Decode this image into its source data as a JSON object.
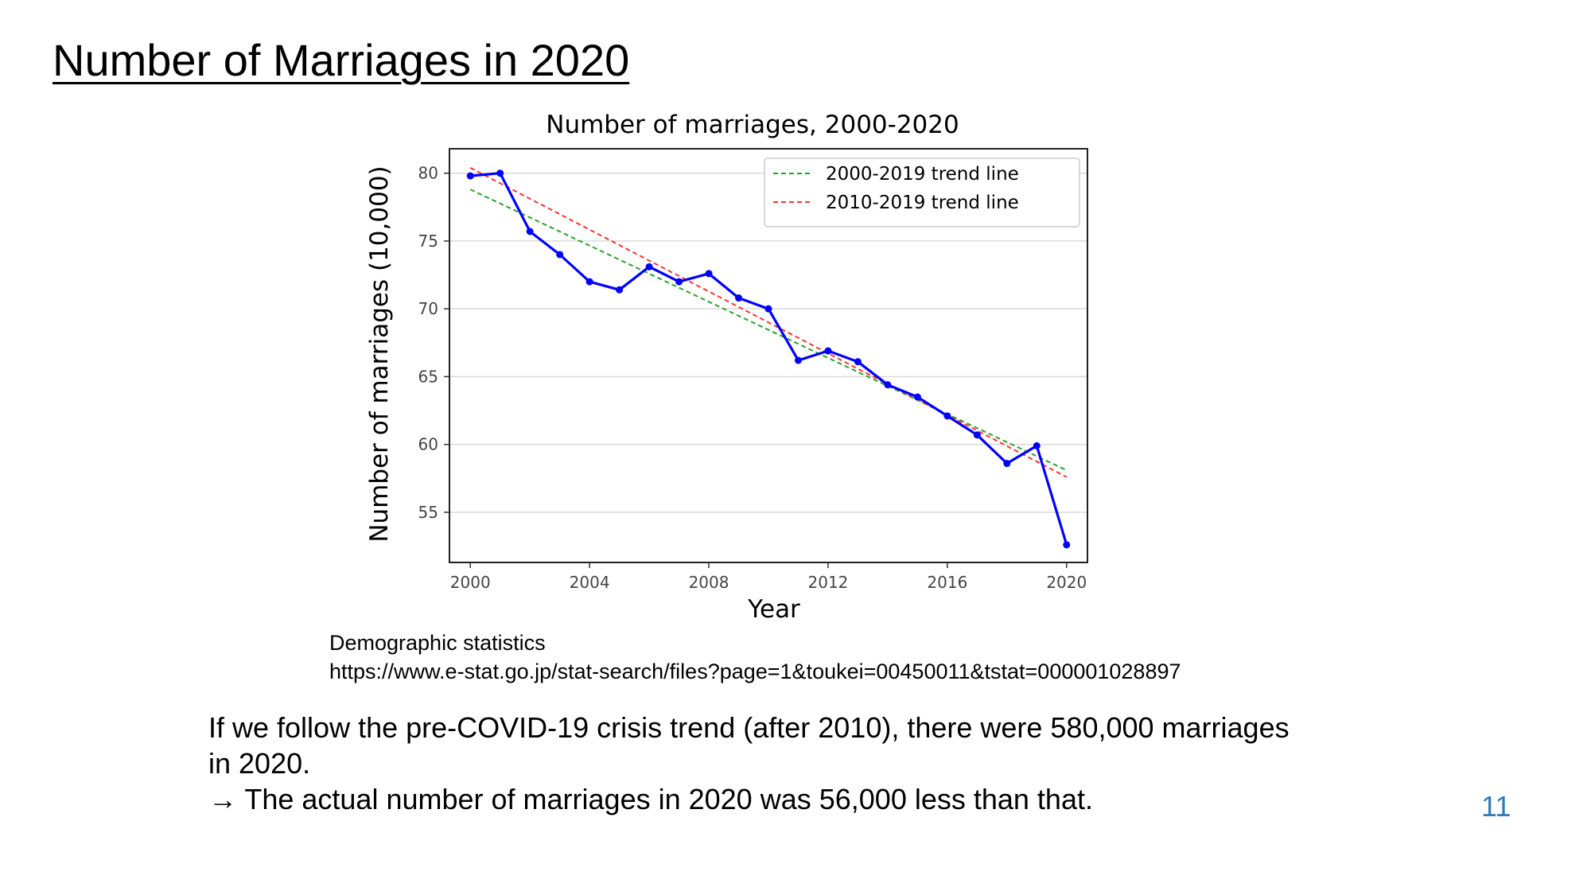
{
  "slide": {
    "title": "Number of Marriages in 2020",
    "source_title": "Demographic statistics",
    "source_url": "https://www.e-stat.go.jp/stat-search/files?page=1&toukei=00450011&tstat=000001028897",
    "summary_line1": "If we follow the pre-COVID-19 crisis trend (after 2010), there were 580,000 marriages in 2020.",
    "summary_line2": "→ The actual number of marriages in 2020 was 56,000 less than that.",
    "page_number": "11",
    "page_number_color": "#2b7bbf"
  },
  "chart_data": {
    "type": "line",
    "title": "Number of marriages, 2000-2020",
    "xlabel": "Year",
    "ylabel": "Number of marriages (10,000)",
    "xlim": [
      1999.3,
      2020.7
    ],
    "ylim": [
      51.3,
      81.8
    ],
    "xticks": [
      2000,
      2004,
      2008,
      2012,
      2016,
      2020
    ],
    "yticks": [
      55,
      60,
      65,
      70,
      75,
      80
    ],
    "grid": "horizontal",
    "legend_position": "top-right",
    "series": [
      {
        "kind": "data",
        "color": "#0000ff",
        "style": "solid",
        "markers": true,
        "x": [
          2000,
          2001,
          2002,
          2003,
          2004,
          2005,
          2006,
          2007,
          2008,
          2009,
          2010,
          2011,
          2012,
          2013,
          2014,
          2015,
          2016,
          2017,
          2018,
          2019,
          2020
        ],
        "y": [
          79.8,
          80.0,
          75.7,
          74.0,
          72.0,
          71.4,
          73.1,
          72.0,
          72.6,
          70.8,
          70.0,
          66.2,
          66.9,
          66.1,
          64.4,
          63.5,
          62.1,
          60.7,
          58.6,
          59.9,
          52.6
        ]
      },
      {
        "kind": "trend",
        "name": "2000-2019 trend line",
        "color": "#2ca02c",
        "style": "dashed",
        "x": [
          2000,
          2020
        ],
        "y": [
          78.8,
          58.1
        ]
      },
      {
        "kind": "trend",
        "name": "2010-2019 trend line",
        "color": "#ff3333",
        "style": "dashed",
        "x": [
          2000,
          2020
        ],
        "y": [
          80.4,
          57.6
        ]
      }
    ]
  }
}
